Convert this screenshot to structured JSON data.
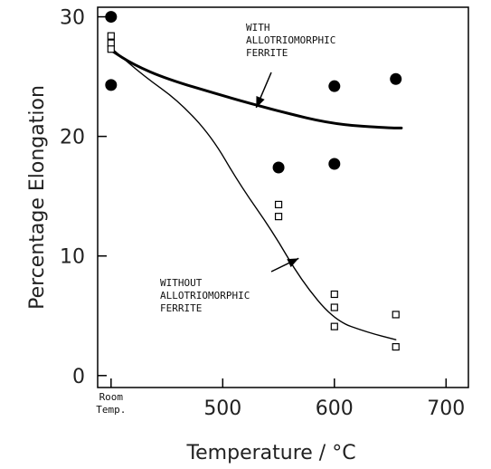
{
  "chart_data": {
    "type": "scatter",
    "xlabel": "Temperature / °C",
    "ylabel": "Percentage Elongation",
    "xlim": [
      388,
      720
    ],
    "ylim": [
      -1,
      30.8
    ],
    "x_ticks": [
      {
        "value": 400,
        "label": ""
      },
      {
        "value": 500,
        "label": "500"
      },
      {
        "value": 600,
        "label": "600"
      },
      {
        "value": 700,
        "label": "700"
      }
    ],
    "room_temp_label": [
      "Room",
      "Temp."
    ],
    "y_ticks": [
      {
        "value": 0,
        "label": "0"
      },
      {
        "value": 10,
        "label": "10"
      },
      {
        "value": 20,
        "label": "20"
      },
      {
        "value": 30,
        "label": "30"
      }
    ],
    "grid": false,
    "series": [
      {
        "marker": "filled-circle",
        "points": [
          [
            400,
            30
          ],
          [
            400,
            24.3
          ],
          [
            550,
            17.4
          ],
          [
            600,
            17.7
          ],
          [
            600,
            24.2
          ],
          [
            655,
            24.8
          ]
        ]
      },
      {
        "marker": "open-square",
        "points": [
          [
            400,
            28.4
          ],
          [
            400,
            27.8
          ],
          [
            400,
            27.3
          ],
          [
            550,
            14.3
          ],
          [
            550,
            13.3
          ],
          [
            600,
            6.8
          ],
          [
            600,
            5.7
          ],
          [
            600,
            4.1
          ],
          [
            655,
            5.1
          ],
          [
            655,
            2.4
          ]
        ]
      },
      {
        "style": "thick-line",
        "points": [
          [
            400,
            27.2
          ],
          [
            420,
            26.0
          ],
          [
            450,
            24.8
          ],
          [
            500,
            23.4
          ],
          [
            550,
            22.1
          ],
          [
            600,
            21.0
          ],
          [
            650,
            20.7
          ],
          [
            660,
            20.7
          ]
        ]
      },
      {
        "style": "thin-line",
        "points": [
          [
            400,
            27.4
          ],
          [
            430,
            25.0
          ],
          [
            460,
            23.0
          ],
          [
            490,
            20.0
          ],
          [
            515,
            16.0
          ],
          [
            545,
            12.0
          ],
          [
            570,
            8.0
          ],
          [
            600,
            4.6
          ],
          [
            630,
            3.6
          ],
          [
            655,
            3.0
          ]
        ]
      }
    ],
    "annotations": [
      {
        "lines": [
          "WITH",
          "ALLOTRIOMORPHIC",
          "FERRITE"
        ],
        "points_to": [
          530,
          22.4
        ]
      },
      {
        "lines": [
          "WITHOUT",
          "ALLOTRIOMORPHIC",
          "FERRITE"
        ],
        "points_to": [
          568,
          9.8
        ]
      }
    ]
  }
}
